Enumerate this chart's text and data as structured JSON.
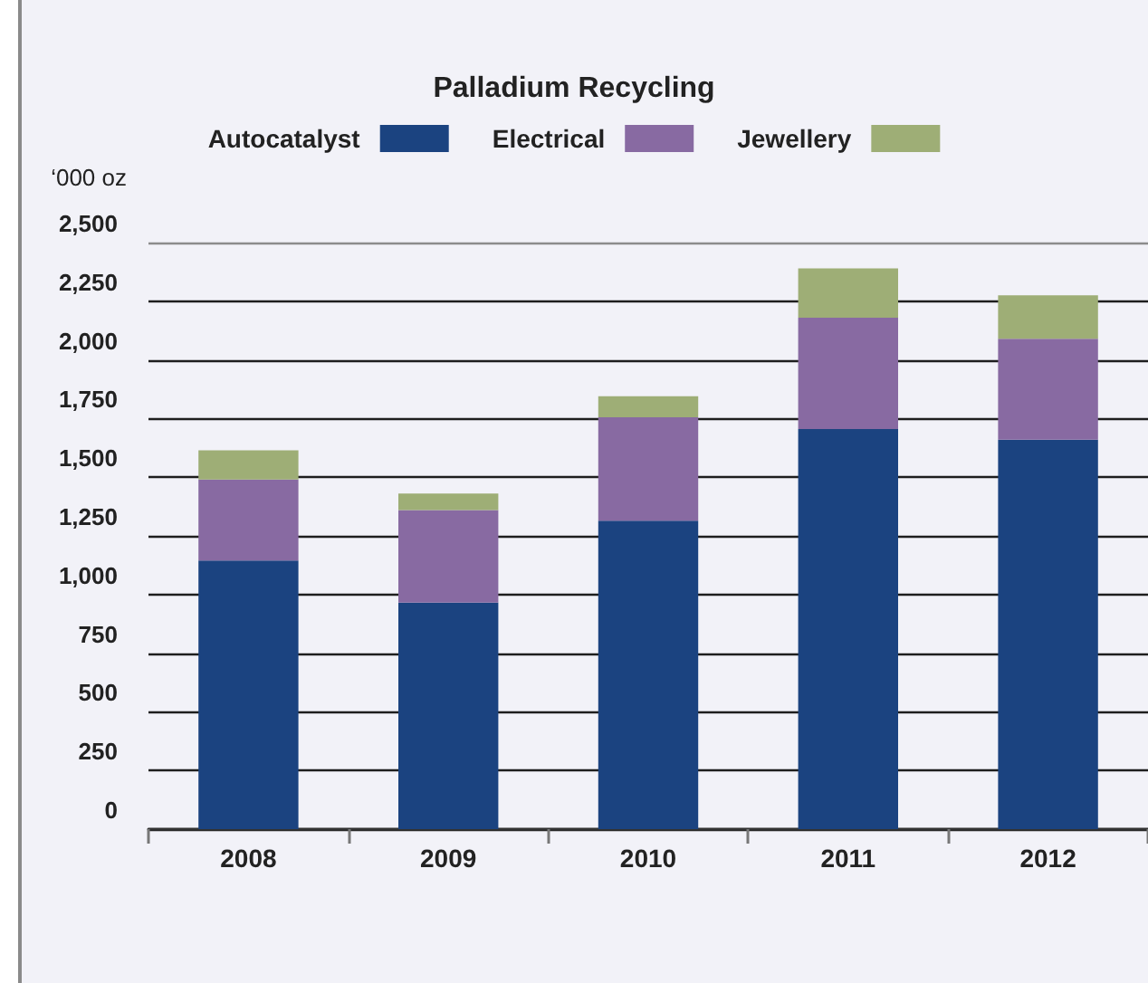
{
  "chart_data": {
    "type": "bar",
    "title": "Palladium Recycling",
    "ylabel": "‘000 oz",
    "categories": [
      "2008",
      "2009",
      "2010",
      "2011",
      "2012"
    ],
    "series": [
      {
        "name": "Autocatalyst",
        "color": "#1b4380",
        "values": [
          1145,
          965,
          1315,
          1705,
          1660
        ]
      },
      {
        "name": "Electrical",
        "color": "#886aa2",
        "values": [
          345,
          395,
          440,
          475,
          430
        ]
      },
      {
        "name": "Jewellery",
        "color": "#9eae76",
        "values": [
          125,
          70,
          90,
          210,
          185
        ]
      }
    ],
    "stacked": true,
    "ylim": [
      0,
      2500
    ],
    "yticks": [
      0,
      250,
      500,
      750,
      {
        "value": 1000,
        "label": "1,000"
      },
      {
        "value": 1250,
        "label": "1,250"
      },
      {
        "value": 1500,
        "label": "1,500"
      },
      {
        "value": 1750,
        "label": "1,750"
      },
      {
        "value": 2000,
        "label": "2,000"
      },
      {
        "value": 2250,
        "label": "2,250"
      },
      {
        "value": 2500,
        "label": "2,500"
      }
    ],
    "grid": "y",
    "legend": "top"
  }
}
